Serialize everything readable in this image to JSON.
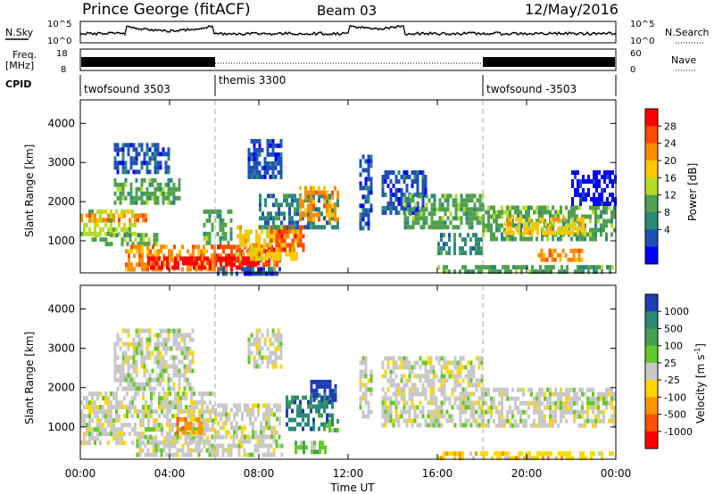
{
  "header": {
    "station": "Prince George (fitACF)",
    "beam": "Beam 03",
    "date": "12/May/2016"
  },
  "top_panels": {
    "nsky": {
      "label": "N.Sky",
      "ticks": [
        "10^5",
        "10^0"
      ]
    },
    "nsearch": {
      "label": "N.Search",
      "ticks": [
        "10^5",
        "10^0"
      ]
    },
    "freq": {
      "label_line1": "Freq.",
      "label_line2": "[MHz]",
      "ticks": [
        "18",
        "8"
      ]
    },
    "nave": {
      "label": "Nave",
      "ticks": [
        "60",
        "0"
      ]
    },
    "cpid": {
      "label": "CPID",
      "segments": [
        {
          "name": "twofsound 3503",
          "start_hour": 0,
          "end_hour": 6
        },
        {
          "name": "themis 3300",
          "start_hour": 6,
          "end_hour": 18
        },
        {
          "name": "twofsound -3503",
          "start_hour": 18,
          "end_hour": 24
        }
      ]
    }
  },
  "axes": {
    "x_label": "Time UT",
    "x_ticks": [
      "00:00",
      "04:00",
      "08:00",
      "12:00",
      "16:00",
      "20:00",
      "00:00"
    ],
    "y_label": "Slant Range [km]",
    "y_ticks": [
      "1000",
      "2000",
      "3000",
      "4000"
    ]
  },
  "colorbars": {
    "power": {
      "label": "Power [dB]",
      "ticks": [
        "28",
        "24",
        "20",
        "16",
        "12",
        "8",
        "4"
      ],
      "colors": [
        "#ff0000",
        "#ff4a00",
        "#ff8c00",
        "#ffc800",
        "#b4dc28",
        "#50a050",
        "#2a8a78",
        "#1e50b4",
        "#0000ff"
      ]
    },
    "velocity": {
      "label_main": "Velocity [m s",
      "label_sup": "-1",
      "label_end": "]",
      "ticks": [
        "1000",
        "500",
        "100",
        "25",
        "-25",
        "-100",
        "-500",
        "-1000"
      ],
      "colors": [
        "#1e3cb4",
        "#2a8a78",
        "#46a050",
        "#64c828",
        "#c8c8c8",
        "#ffd700",
        "#ff9600",
        "#ff5000",
        "#ff0000"
      ]
    }
  },
  "chart_data": {
    "type": "heatmap",
    "x_range_hours": [
      0,
      24
    ],
    "y_range_km": [
      180,
      4600
    ],
    "dashed_lines_hours": [
      6,
      18
    ],
    "power_regions": [
      {
        "t0": 0,
        "t1": 2.5,
        "r0": 1200,
        "r1": 1800,
        "level": 4
      },
      {
        "t0": 0,
        "t1": 3.0,
        "r0": 1500,
        "r1": 1700,
        "level": 2
      },
      {
        "t0": 0.5,
        "t1": 3.5,
        "r0": 900,
        "r1": 1200,
        "level": 5
      },
      {
        "t0": 2.0,
        "t1": 6.0,
        "r0": 250,
        "r1": 900,
        "level": 2
      },
      {
        "t0": 3.0,
        "t1": 6.0,
        "r0": 300,
        "r1": 600,
        "level": 0
      },
      {
        "t0": 1.5,
        "t1": 4.5,
        "r0": 2000,
        "r1": 2600,
        "level": 5
      },
      {
        "t0": 1.5,
        "t1": 4.0,
        "r0": 2800,
        "r1": 3500,
        "level": 7
      },
      {
        "t0": 5.5,
        "t1": 6.8,
        "r0": 900,
        "r1": 1800,
        "level": 5
      },
      {
        "t0": 6.0,
        "t1": 9.0,
        "r0": 250,
        "r1": 900,
        "level": 1
      },
      {
        "t0": 6.0,
        "t1": 8.0,
        "r0": 300,
        "r1": 600,
        "level": 0
      },
      {
        "t0": 7.0,
        "t1": 9.8,
        "r0": 600,
        "r1": 1400,
        "level": 3
      },
      {
        "t0": 8.5,
        "t1": 10.0,
        "r0": 800,
        "r1": 1400,
        "level": 1
      },
      {
        "t0": 8.0,
        "t1": 11.5,
        "r0": 1300,
        "r1": 2200,
        "level": 6
      },
      {
        "t0": 9.8,
        "t1": 11.5,
        "r0": 1600,
        "r1": 2400,
        "level": 2
      },
      {
        "t0": 7.5,
        "t1": 9.0,
        "r0": 2600,
        "r1": 3600,
        "level": 7
      },
      {
        "t0": 6.0,
        "t1": 9.0,
        "r0": 180,
        "r1": 330,
        "level": 7
      },
      {
        "t0": 12.5,
        "t1": 13.0,
        "r0": 1300,
        "r1": 3200,
        "level": 7
      },
      {
        "t0": 13.5,
        "t1": 15.5,
        "r0": 1700,
        "r1": 2800,
        "level": 7
      },
      {
        "t0": 14.5,
        "t1": 18.0,
        "r0": 1400,
        "r1": 2200,
        "level": 5
      },
      {
        "t0": 16.0,
        "t1": 18.0,
        "r0": 700,
        "r1": 1200,
        "level": 6
      },
      {
        "t0": 16.0,
        "t1": 24.0,
        "r0": 180,
        "r1": 380,
        "level": 5
      },
      {
        "t0": 18.0,
        "t1": 24.0,
        "r0": 1100,
        "r1": 1900,
        "level": 5
      },
      {
        "t0": 19.0,
        "t1": 22.5,
        "r0": 1200,
        "r1": 1600,
        "level": 3
      },
      {
        "t0": 20.5,
        "t1": 22.5,
        "r0": 500,
        "r1": 800,
        "level": 2
      },
      {
        "t0": 22.0,
        "t1": 24.0,
        "r0": 2000,
        "r1": 2800,
        "level": 8
      }
    ],
    "velocity_regions": [
      {
        "t0": 0,
        "t1": 6.0,
        "r0": 600,
        "r1": 1900,
        "level": 4
      },
      {
        "t0": 1.5,
        "t1": 5.0,
        "r0": 2000,
        "r1": 3500,
        "level": 4
      },
      {
        "t0": 4.3,
        "t1": 5.5,
        "r0": 850,
        "r1": 1250,
        "level": 6
      },
      {
        "t0": 2.5,
        "t1": 9.0,
        "r0": 250,
        "r1": 800,
        "level": 4
      },
      {
        "t0": 6.0,
        "t1": 9.0,
        "r0": 800,
        "r1": 1600,
        "level": 4
      },
      {
        "t0": 7.5,
        "t1": 9.0,
        "r0": 2500,
        "r1": 3500,
        "level": 4
      },
      {
        "t0": 9.2,
        "t1": 11.3,
        "r0": 1000,
        "r1": 1800,
        "level": 1
      },
      {
        "t0": 10.3,
        "t1": 11.5,
        "r0": 1700,
        "r1": 2200,
        "level": 0
      },
      {
        "t0": 11.0,
        "t1": 11.5,
        "r0": 900,
        "r1": 1200,
        "level": 3
      },
      {
        "t0": 9.6,
        "t1": 11.0,
        "r0": 400,
        "r1": 650,
        "level": 3
      },
      {
        "t0": 12.5,
        "t1": 13.0,
        "r0": 1300,
        "r1": 2800,
        "level": 4
      },
      {
        "t0": 13.5,
        "t1": 18.0,
        "r0": 1000,
        "r1": 2800,
        "level": 4
      },
      {
        "t0": 18.0,
        "t1": 24.0,
        "r0": 1000,
        "r1": 2000,
        "level": 4
      },
      {
        "t0": 16.0,
        "t1": 24.0,
        "r0": 180,
        "r1": 380,
        "level": 5
      }
    ]
  }
}
